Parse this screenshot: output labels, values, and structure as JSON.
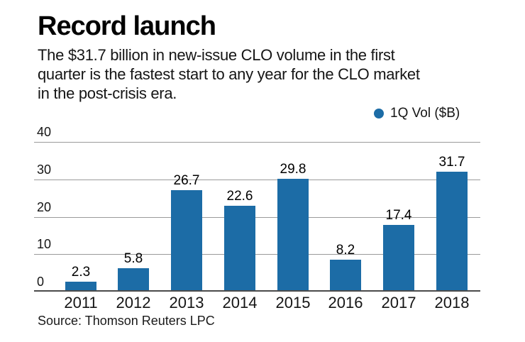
{
  "header": {
    "title": "Record launch",
    "subtitle_lines": [
      "The $31.7 billion in new-issue CLO volume in the first",
      "quarter is the fastest start to any year for the CLO market",
      "in the post-crisis era."
    ]
  },
  "legend": {
    "label": "1Q Vol ($B)",
    "marker_color": "#1c6ca6"
  },
  "source": {
    "text": "Source: Thomson Reuters LPC"
  },
  "chart_data": {
    "type": "bar",
    "title": "Record launch",
    "categories": [
      "2011",
      "2012",
      "2013",
      "2014",
      "2015",
      "2016",
      "2017",
      "2018"
    ],
    "series": [
      {
        "name": "1Q Vol ($B)",
        "values": [
          2.3,
          5.8,
          26.7,
          22.6,
          29.8,
          8.2,
          17.4,
          31.7
        ]
      }
    ],
    "data_labels": [
      "2.3",
      "5.8",
      "26.7",
      "22.6",
      "29.8",
      "8.2",
      "17.4",
      "31.7"
    ],
    "xlabel": "",
    "ylabel": "",
    "ylim": [
      0,
      40
    ],
    "yticks": [
      0,
      10,
      20,
      30,
      40
    ],
    "grid": true,
    "legend_position": "top-right",
    "bar_color": "#1c6ca6",
    "gridline_color": "#9a9a9a",
    "axis_color": "#4b4b4b"
  }
}
